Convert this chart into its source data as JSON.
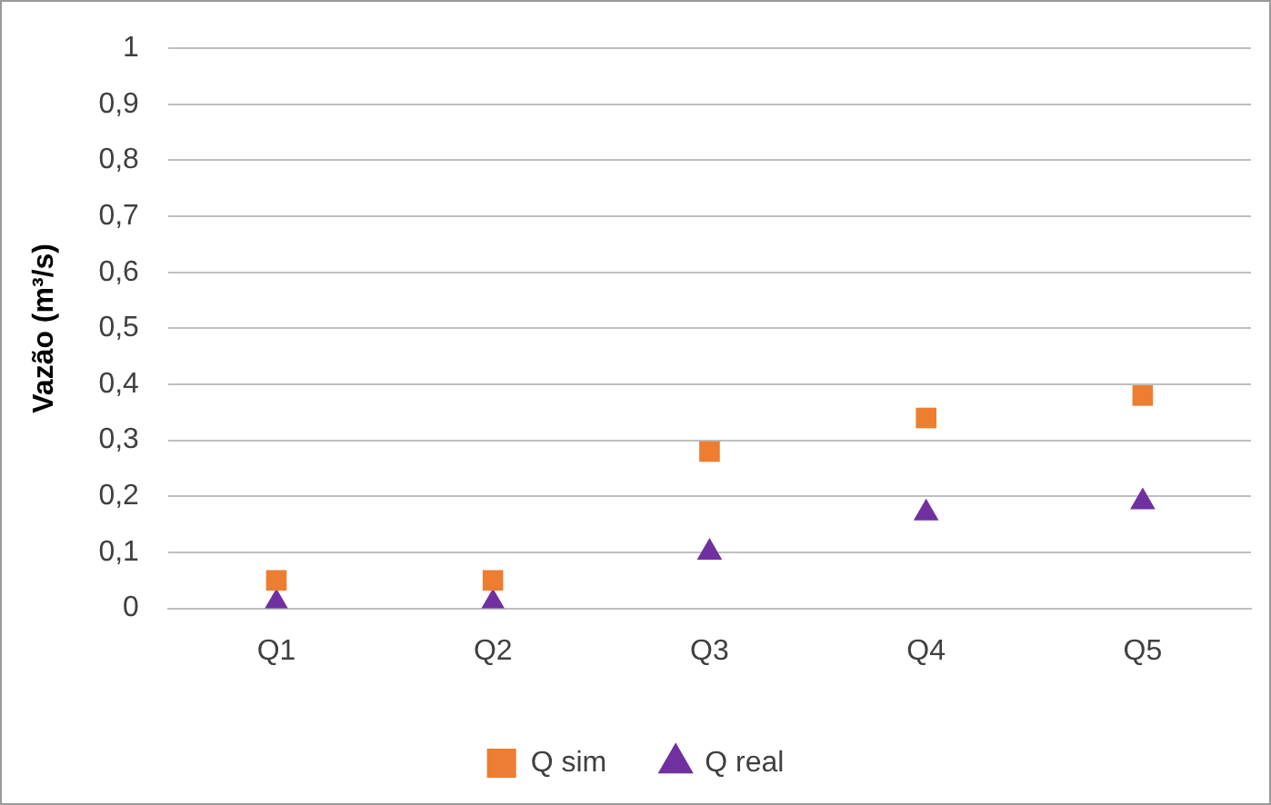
{
  "chart_data": {
    "type": "scatter",
    "ylabel": "Vazão (m³/s)",
    "categories": [
      "Q1",
      "Q2",
      "Q3",
      "Q4",
      "Q5"
    ],
    "series": [
      {
        "name": "Q sim",
        "color": "#ed7d31",
        "marker": "square",
        "values": [
          0.05,
          0.05,
          0.28,
          0.34,
          0.38
        ]
      },
      {
        "name": "Q real",
        "color": "#7030a0",
        "marker": "triangle",
        "values": [
          0.01,
          0.01,
          0.1,
          0.17,
          0.19
        ]
      }
    ],
    "ylim": [
      0,
      1
    ],
    "yticks": [
      0,
      {
        "value": 0.1,
        "label": "0,1"
      },
      {
        "value": 0.2,
        "label": "0,2"
      },
      {
        "value": 0.3,
        "label": "0,3"
      },
      {
        "value": 0.4,
        "label": "0,4"
      },
      {
        "value": 0.5,
        "label": "0,5"
      },
      {
        "value": 0.6,
        "label": "0,6"
      },
      {
        "value": 0.7,
        "label": "0,7"
      },
      {
        "value": 0.8,
        "label": "0,8"
      },
      {
        "value": 0.9,
        "label": "0,9"
      },
      1
    ],
    "grid": "y",
    "legend": "bottom"
  }
}
